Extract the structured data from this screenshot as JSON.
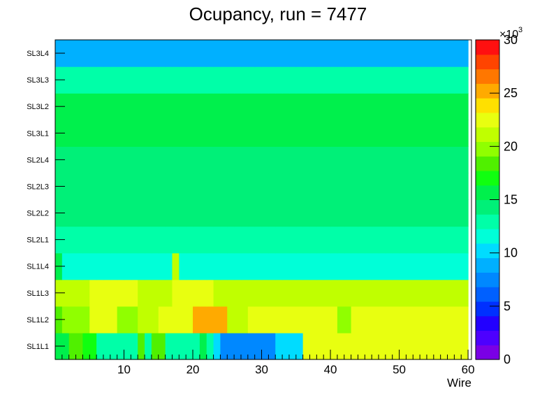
{
  "chart_data": {
    "type": "heatmap",
    "title": "Ocupancy, run = 7477",
    "xlabel": "Wire",
    "ylabel": "",
    "xlim": [
      0,
      60.5
    ],
    "x_ticks": [
      "10",
      "20",
      "30",
      "40",
      "50",
      "60"
    ],
    "rows": [
      "SL1L1",
      "SL1L2",
      "SL1L3",
      "SL1L4",
      "SL2L1",
      "SL2L2",
      "SL2L3",
      "SL2L4",
      "SL3L1",
      "SL3L2",
      "SL3L3",
      "SL3L4"
    ],
    "zlim": [
      0,
      30000
    ],
    "z_multiplier": "×10",
    "z_multiplier_exp": "3",
    "z_ticks": [
      "0",
      "5",
      "10",
      "15",
      "20",
      "25",
      "30"
    ],
    "palette": [
      "#7a00e6",
      "#4d00ff",
      "#2200ff",
      "#0030ff",
      "#0060ff",
      "#0088ff",
      "#00b0ff",
      "#00dcff",
      "#00ffd8",
      "#00ffa8",
      "#00f078",
      "#00f04c",
      "#10ff10",
      "#50f000",
      "#90ff00",
      "#c0ff00",
      "#e8ff10",
      "#ffe000",
      "#ffaa00",
      "#ff7700",
      "#ff4400",
      "#ff1010"
    ],
    "values": [
      [
        16,
        16,
        19,
        19,
        17,
        17,
        13,
        13,
        13,
        13,
        13,
        13,
        18,
        13,
        18,
        18,
        13,
        13,
        13,
        13,
        13,
        15,
        13,
        10,
        8,
        8,
        8,
        8,
        8,
        8,
        8,
        8,
        10,
        10,
        10,
        10,
        22,
        22,
        22,
        22,
        22,
        22,
        22,
        22,
        22,
        22,
        22,
        22,
        22,
        22,
        22,
        22,
        22,
        22,
        22,
        22,
        22,
        22,
        22,
        22
      ],
      [
        19,
        20,
        20,
        20,
        20,
        22,
        22,
        22,
        22,
        20,
        20,
        20,
        21,
        21,
        21,
        22,
        22,
        22,
        22,
        22,
        25,
        25,
        25,
        25,
        25,
        21,
        21,
        21,
        22,
        22,
        22,
        22,
        22,
        22,
        22,
        22,
        22,
        22,
        22,
        22,
        22,
        20,
        20,
        22,
        22,
        22,
        22,
        22,
        22,
        22,
        22,
        22,
        22,
        22,
        22,
        22,
        22,
        22,
        22,
        22
      ],
      [
        21,
        21,
        21,
        21,
        21,
        22,
        22,
        22,
        22,
        22,
        22,
        22,
        21,
        21,
        21,
        21,
        21,
        22,
        22,
        22,
        22,
        22,
        22,
        21,
        21,
        21,
        21,
        21,
        21,
        21,
        21,
        21,
        21,
        21,
        21,
        21,
        21,
        21,
        21,
        21,
        21,
        21,
        21,
        21,
        21,
        21,
        21,
        21,
        21,
        21,
        21,
        21,
        21,
        21,
        21,
        21,
        21,
        21,
        21,
        21
      ],
      [
        16,
        11,
        11,
        11,
        11,
        11,
        11,
        11,
        11,
        11,
        11,
        11,
        12,
        12,
        12,
        12,
        12,
        21,
        12,
        12,
        12,
        12,
        12,
        12,
        12,
        12,
        12,
        12,
        12,
        12,
        12,
        12,
        12,
        12,
        12,
        12,
        12,
        12,
        12,
        12,
        12,
        12,
        12,
        12,
        12,
        12,
        12,
        12,
        12,
        12,
        12,
        12,
        12,
        12,
        12,
        12,
        12,
        12,
        12,
        12
      ],
      [
        13,
        13,
        13,
        13,
        13,
        13,
        13,
        13,
        13,
        13,
        13,
        13,
        13,
        13,
        13,
        13,
        13,
        13,
        13,
        13,
        13,
        13,
        13,
        13,
        13,
        13,
        13,
        13,
        13,
        13,
        13,
        13,
        13,
        13,
        13,
        13,
        13,
        13,
        13,
        13,
        13,
        13,
        13,
        13,
        13,
        13,
        13,
        13,
        13,
        13,
        13,
        13,
        13,
        13,
        13,
        13,
        13,
        13,
        13,
        13
      ],
      [
        14,
        14,
        14,
        14,
        14,
        14,
        14,
        14,
        14,
        14,
        14,
        14,
        14,
        14,
        14,
        14,
        14,
        14,
        14,
        14,
        14,
        14,
        14,
        14,
        14,
        14,
        14,
        14,
        14,
        14,
        14,
        14,
        14,
        14,
        14,
        14,
        14,
        14,
        14,
        14,
        14,
        14,
        14,
        14,
        14,
        14,
        14,
        14,
        14,
        14,
        14,
        14,
        14,
        14,
        14,
        14,
        14,
        14,
        14,
        14
      ],
      [
        14,
        14,
        14,
        14,
        14,
        14,
        14,
        14,
        14,
        14,
        14,
        14,
        14,
        14,
        14,
        14,
        14,
        14,
        14,
        14,
        14,
        14,
        14,
        14,
        14,
        14,
        14,
        14,
        14,
        14,
        14,
        14,
        14,
        14,
        14,
        14,
        14,
        14,
        14,
        14,
        14,
        14,
        14,
        14,
        14,
        14,
        14,
        14,
        14,
        14,
        14,
        14,
        14,
        14,
        14,
        14,
        14,
        14,
        14,
        14
      ],
      [
        14,
        14,
        14,
        14,
        14,
        14,
        14,
        14,
        14,
        14,
        14,
        14,
        14,
        14,
        14,
        14,
        14,
        14,
        14,
        14,
        14,
        14,
        14,
        14,
        14,
        14,
        14,
        14,
        14,
        14,
        14,
        14,
        14,
        14,
        14,
        14,
        14,
        14,
        14,
        14,
        14,
        14,
        14,
        14,
        14,
        14,
        14,
        14,
        14,
        14,
        14,
        14,
        14,
        14,
        14,
        14,
        14,
        14,
        14,
        14
      ],
      [
        15,
        15,
        15,
        15,
        15,
        15,
        15,
        15,
        15,
        15,
        15,
        15,
        15,
        15,
        15,
        15,
        15,
        15,
        15,
        15,
        15,
        15,
        15,
        15,
        15,
        15,
        15,
        15,
        15,
        15,
        15,
        15,
        15,
        15,
        15,
        15,
        15,
        15,
        15,
        15,
        15,
        15,
        15,
        15,
        15,
        15,
        15,
        15,
        15,
        15,
        15,
        15,
        15,
        15,
        15,
        15,
        15,
        15,
        15,
        15
      ],
      [
        15,
        15,
        15,
        15,
        15,
        15,
        15,
        15,
        15,
        15,
        15,
        15,
        15,
        15,
        15,
        15,
        15,
        15,
        15,
        15,
        15,
        15,
        15,
        15,
        15,
        15,
        15,
        15,
        15,
        15,
        15,
        15,
        15,
        15,
        15,
        15,
        15,
        15,
        15,
        15,
        15,
        15,
        15,
        15,
        15,
        15,
        15,
        15,
        15,
        15,
        15,
        15,
        15,
        15,
        15,
        15,
        15,
        15,
        15,
        15
      ],
      [
        13,
        13,
        13,
        13,
        13,
        13,
        13,
        13,
        13,
        13,
        13,
        13,
        13,
        13,
        13,
        13,
        13,
        13,
        13,
        13,
        13,
        13,
        13,
        13,
        13,
        13,
        13,
        13,
        13,
        13,
        13,
        13,
        13,
        13,
        13,
        13,
        13,
        13,
        13,
        13,
        13,
        13,
        13,
        13,
        13,
        13,
        13,
        13,
        13,
        13,
        13,
        13,
        13,
        13,
        13,
        13,
        13,
        13,
        13,
        13
      ],
      [
        9,
        9,
        9,
        9,
        9,
        9,
        9,
        9,
        9,
        9,
        9,
        9,
        9,
        9,
        9,
        9,
        9,
        9,
        9,
        9,
        9,
        9,
        9,
        9,
        9,
        9,
        9,
        9,
        9,
        9,
        9,
        9,
        9,
        9,
        9,
        9,
        9,
        9,
        9,
        9,
        9,
        9,
        9,
        9,
        9,
        9,
        9,
        9,
        9,
        9,
        9,
        9,
        9,
        9,
        9,
        9,
        9,
        9,
        9,
        9
      ]
    ]
  }
}
